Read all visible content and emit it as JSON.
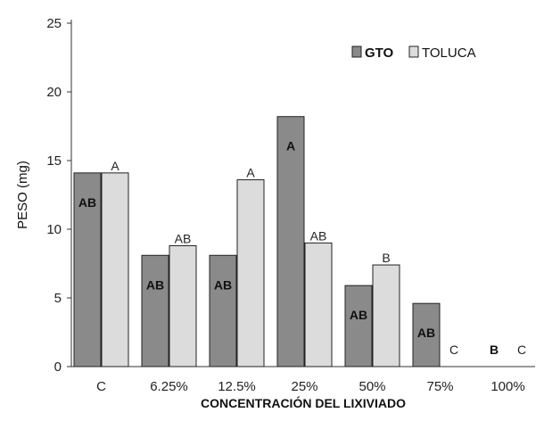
{
  "chart_data": {
    "type": "bar",
    "xlabel": "CONCENTRACIÓN DEL LIXIVIADO",
    "ylabel": "PESO (mg)",
    "ylim": [
      0,
      25
    ],
    "yticks": [
      0,
      5,
      10,
      15,
      20,
      25
    ],
    "grid": false,
    "legend_position": "top-right",
    "categories": [
      "C",
      "6.25%",
      "12.5%",
      "25%",
      "50%",
      "75%",
      "100%"
    ],
    "series": [
      {
        "name": "GTO",
        "color": "#8a8a8a",
        "values": [
          14.1,
          8.1,
          8.1,
          18.2,
          5.9,
          4.6,
          0
        ],
        "labels": [
          "AB",
          "AB",
          "AB",
          "A",
          "AB",
          "AB",
          "B"
        ],
        "label_style": "bold"
      },
      {
        "name": "TOLUCA",
        "color": "#dcdcdc",
        "values": [
          14.1,
          8.8,
          13.6,
          9.0,
          7.4,
          0,
          0
        ],
        "labels": [
          "A",
          "AB",
          "A",
          "AB",
          "B",
          "C",
          "C"
        ],
        "label_style": "normal"
      }
    ]
  }
}
